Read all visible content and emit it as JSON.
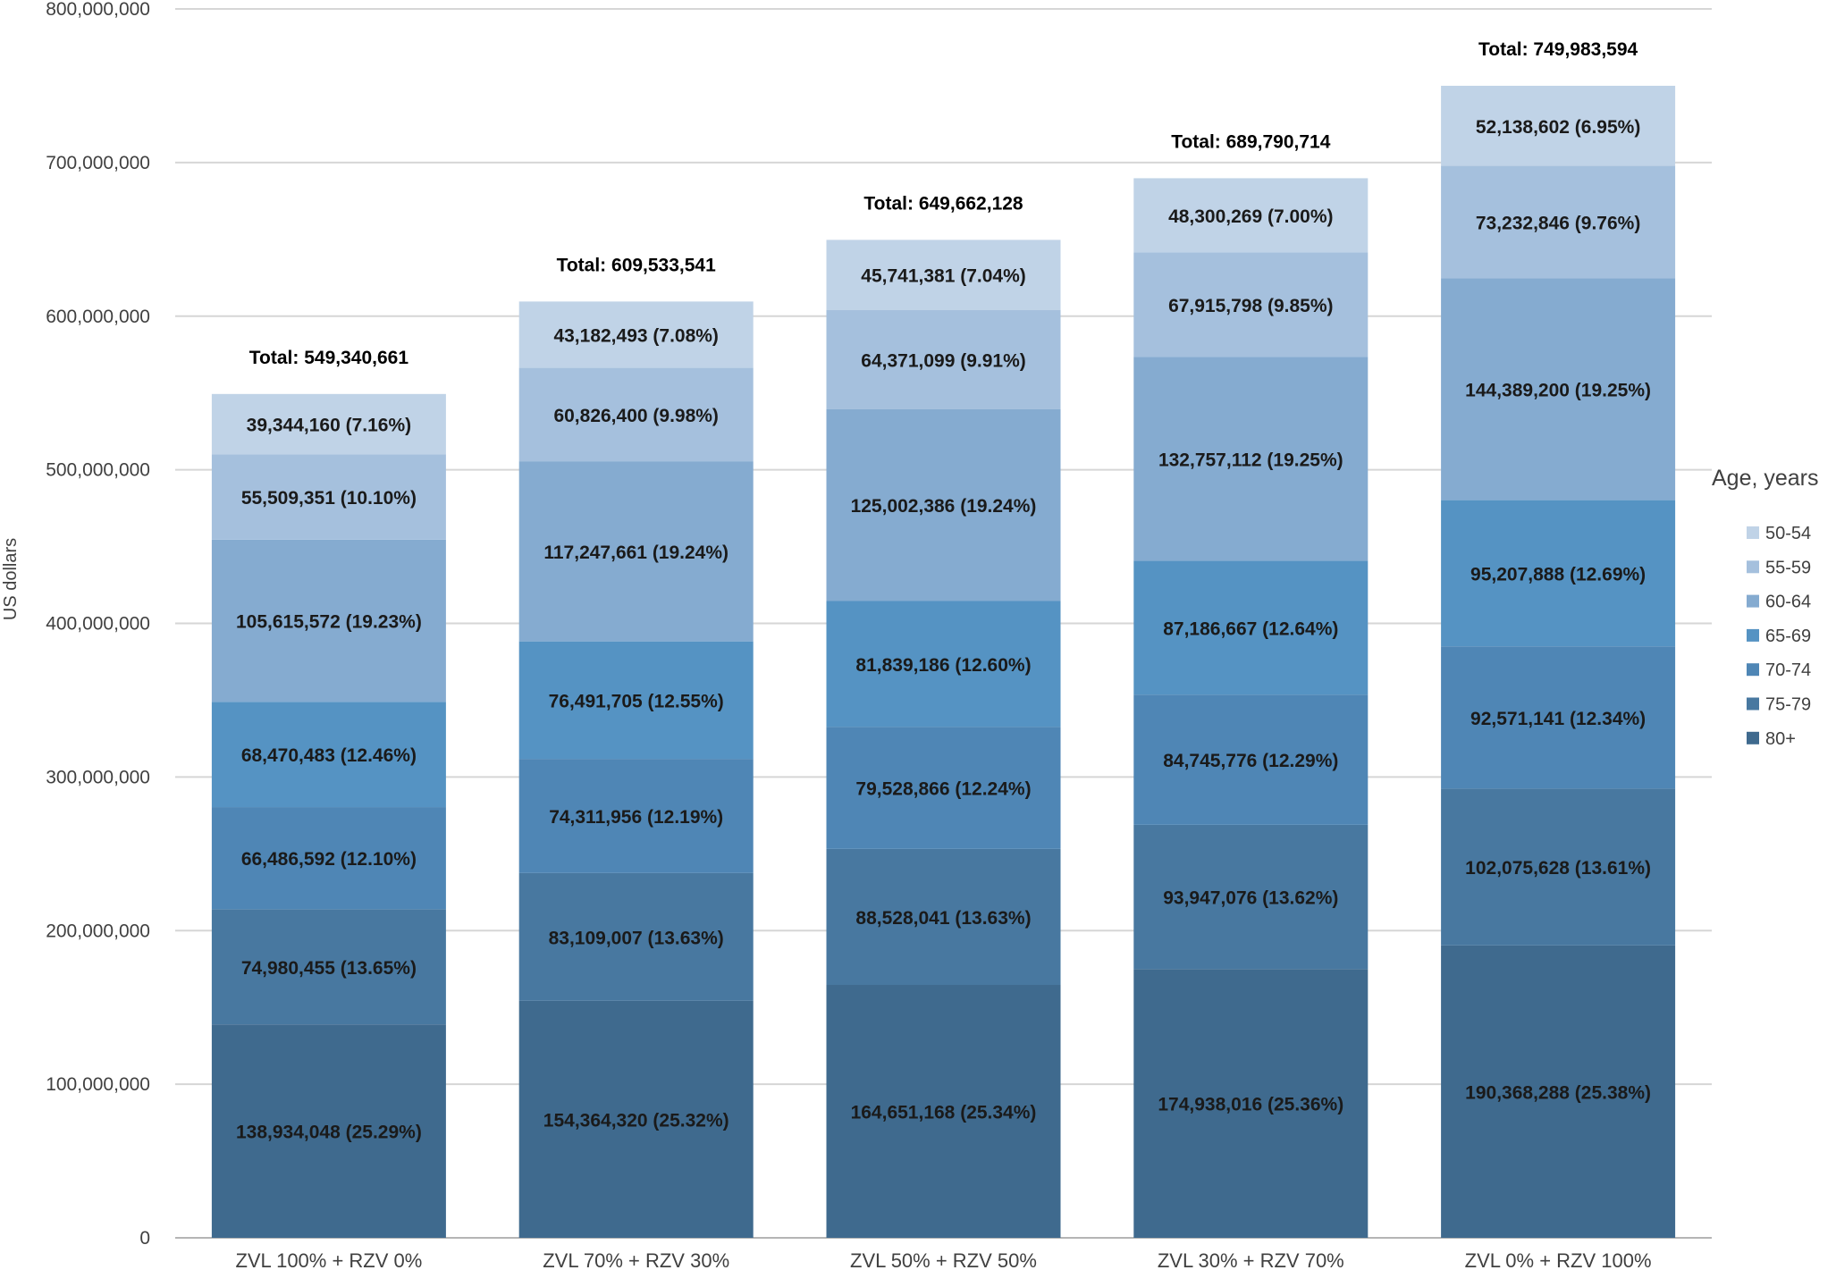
{
  "chart_data": {
    "type": "bar",
    "stacked": true,
    "categories": [
      "ZVL 100% + RZV 0%",
      "ZVL 70% + RZV 30%",
      "ZVL 50% + RZV 50%",
      "ZVL 30% + RZV 70%",
      "ZVL 0% + RZV 100%"
    ],
    "ylabel": "US dollars",
    "ylim": [
      0,
      800000000
    ],
    "yticks": [
      0,
      100000000,
      200000000,
      300000000,
      400000000,
      500000000,
      600000000,
      700000000,
      800000000
    ],
    "ytick_labels": [
      "0",
      "100,000,000",
      "200,000,000",
      "300,000,000",
      "400,000,000",
      "500,000,000",
      "600,000,000",
      "700,000,000",
      "800,000,000"
    ],
    "grid": true,
    "legend": {
      "title": "Age, years",
      "placement": "right"
    },
    "series": [
      {
        "name": "80+",
        "color": "#3f6a8e",
        "values": [
          138934048,
          154364320,
          164651168,
          174938016,
          190368288
        ],
        "labels": [
          "138,934,048 (25.29%)",
          "154,364,320 (25.32%)",
          "164,651,168 (25.34%)",
          "174,938,016 (25.36%)",
          "190,368,288 (25.38%)"
        ]
      },
      {
        "name": "75-79",
        "color": "#4878a0",
        "values": [
          74980455,
          83109007,
          88528041,
          93947076,
          102075628
        ],
        "labels": [
          "74,980,455 (13.65%)",
          "83,109,007 (13.63%)",
          "88,528,041 (13.63%)",
          "93,947,076 (13.62%)",
          "102,075,628 (13.61%)"
        ]
      },
      {
        "name": "70-74",
        "color": "#4f86b5",
        "values": [
          66486592,
          74311956,
          79528866,
          84745776,
          92571141
        ],
        "labels": [
          "66,486,592 (12.10%)",
          "74,311,956 (12.19%)",
          "79,528,866 (12.24%)",
          "84,745,776 (12.29%)",
          "92,571,141 (12.34%)"
        ]
      },
      {
        "name": "65-69",
        "color": "#5593c3",
        "values": [
          68470483,
          76491705,
          81839186,
          87186667,
          95207888
        ],
        "labels": [
          "68,470,483 (12.46%)",
          "76,491,705 (12.55%)",
          "81,839,186 (12.60%)",
          "87,186,667 (12.64%)",
          "95,207,888 (12.69%)"
        ]
      },
      {
        "name": "60-64",
        "color": "#85abd0",
        "values": [
          105615572,
          117247661,
          125002386,
          132757112,
          144389200
        ],
        "labels": [
          "105,615,572 (19.23%)",
          "117,247,661 (19.24%)",
          "125,002,386 (19.24%)",
          "132,757,112 (19.25%)",
          "144,389,200 (19.25%)"
        ]
      },
      {
        "name": "55-59",
        "color": "#a5c0dd",
        "values": [
          55509351,
          60826400,
          64371099,
          67915798,
          73232846
        ],
        "labels": [
          "55,509,351 (10.10%)",
          "60,826,400 (9.98%)",
          "64,371,099 (9.91%)",
          "67,915,798 (9.85%)",
          "73,232,846 (9.76%)"
        ]
      },
      {
        "name": "50-54",
        "color": "#c0d3e7",
        "values": [
          39344160,
          43182493,
          45741381,
          48300269,
          52138602
        ],
        "labels": [
          "39,344,160 (7.16%)",
          "43,182,493 (7.08%)",
          "45,741,381 (7.04%)",
          "48,300,269 (7.00%)",
          "52,138,602 (6.95%)"
        ]
      }
    ],
    "totals": [
      549340661,
      609533541,
      649662128,
      689790714,
      749983594
    ],
    "total_labels": [
      "Total: 549,340,661",
      "Total: 609,533,541",
      "Total: 649,662,128",
      "Total: 689,790,714",
      "Total: 749,983,594"
    ],
    "legend_order": [
      "50-54",
      "55-59",
      "60-64",
      "65-69",
      "70-74",
      "75-79",
      "80+"
    ]
  }
}
